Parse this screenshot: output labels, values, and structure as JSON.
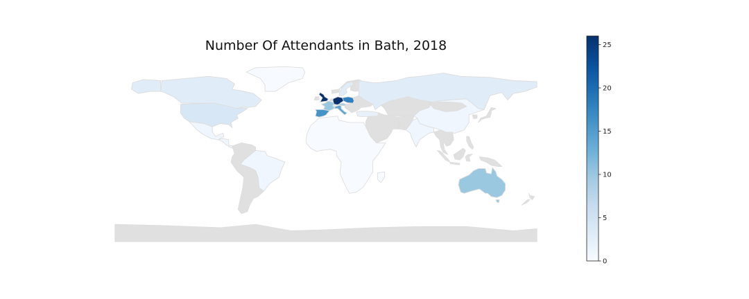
{
  "chart_data": {
    "type": "choropleth",
    "title": "Number Of Attendants in Bath, 2018",
    "colormap": "Blues",
    "missing_color": "#e0e0e0",
    "border_color": "#dddddd",
    "colorbar": {
      "min": 0,
      "max": 26,
      "ticks": [
        0,
        5,
        10,
        15,
        20,
        25
      ],
      "tick_labels": [
        "0",
        "5",
        "10",
        "15",
        "20",
        "25"
      ],
      "placement": "right"
    },
    "values": [
      {
        "region": "Germany",
        "value": 26
      },
      {
        "region": "United Kingdom",
        "value": 26
      },
      {
        "region": "Poland",
        "value": 18
      },
      {
        "region": "Spain",
        "value": 16
      },
      {
        "region": "Italy",
        "value": 14
      },
      {
        "region": "France",
        "value": 10
      },
      {
        "region": "Australia",
        "value": 10
      },
      {
        "region": "Austria",
        "value": 9
      },
      {
        "region": "United States",
        "value": 4
      },
      {
        "region": "Canada",
        "value": 3
      },
      {
        "region": "Russia",
        "value": 3
      },
      {
        "region": "Sweden",
        "value": 3
      },
      {
        "region": "Switzerland",
        "value": 2
      },
      {
        "region": "Turkey",
        "value": 2
      },
      {
        "region": "Mexico",
        "value": 1
      },
      {
        "region": "Brazil",
        "value": 1
      },
      {
        "region": "China",
        "value": 1
      },
      {
        "region": "India",
        "value": 1
      },
      {
        "region": "Africa (other countries)",
        "value": 0
      },
      {
        "region": "Greenland",
        "value": 0
      },
      {
        "region": "Antarctica",
        "value": null
      }
    ]
  }
}
